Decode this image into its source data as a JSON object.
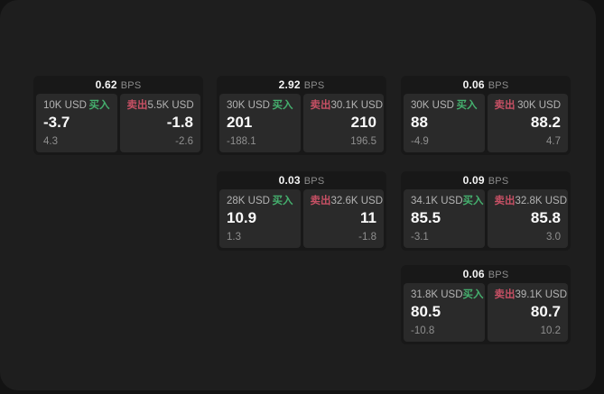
{
  "labels": {
    "buy": "买入",
    "sell": "卖出",
    "bps_unit": "BPS"
  },
  "colors": {
    "background": "#131313",
    "panel": "#1e1e1e",
    "card": "#181818",
    "tile": "#2a2a2a",
    "buy_accent": "#45b06e",
    "sell_accent": "#c65064"
  },
  "cards": [
    {
      "bps": "0.62",
      "row": 1,
      "col": 1,
      "buy": {
        "size": "10K USD",
        "value": "-3.7",
        "change": "4.3"
      },
      "sell": {
        "size": "5.5K USD",
        "value": "-1.8",
        "change": "-2.6"
      }
    },
    {
      "bps": "2.92",
      "row": 1,
      "col": 2,
      "buy": {
        "size": "30K USD",
        "value": "201",
        "change": "-188.1"
      },
      "sell": {
        "size": "30.1K USD",
        "value": "210",
        "change": "196.5"
      }
    },
    {
      "bps": "0.06",
      "row": 1,
      "col": 3,
      "buy": {
        "size": "30K USD",
        "value": "88",
        "change": "-4.9"
      },
      "sell": {
        "size": "30K USD",
        "value": "88.2",
        "change": "4.7"
      }
    },
    {
      "bps": "0.03",
      "row": 2,
      "col": 2,
      "buy": {
        "size": "28K USD",
        "value": "10.9",
        "change": "1.3"
      },
      "sell": {
        "size": "32.6K USD",
        "value": "11",
        "change": "-1.8"
      }
    },
    {
      "bps": "0.09",
      "row": 2,
      "col": 3,
      "buy": {
        "size": "34.1K USD",
        "value": "85.5",
        "change": "-3.1"
      },
      "sell": {
        "size": "32.8K USD",
        "value": "85.8",
        "change": "3.0"
      }
    },
    {
      "bps": "0.06",
      "row": 3,
      "col": 3,
      "buy": {
        "size": "31.8K USD",
        "value": "80.5",
        "change": "-10.8"
      },
      "sell": {
        "size": "39.1K USD",
        "value": "80.7",
        "change": "10.2"
      }
    }
  ]
}
